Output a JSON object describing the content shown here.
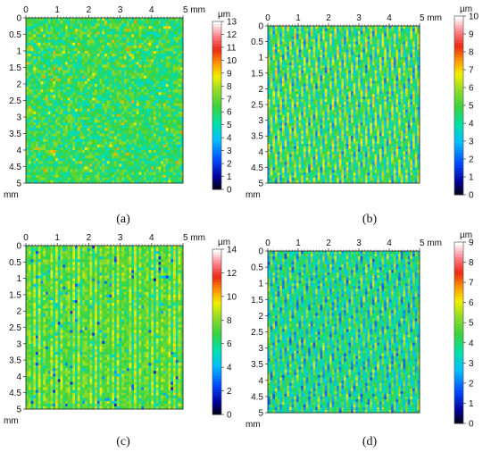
{
  "chart_data": [
    {
      "type": "heatmap",
      "caption": "(a)",
      "x_ticks": [
        "0",
        "1",
        "2",
        "3",
        "4",
        "5 mm"
      ],
      "y_ticks": [
        "0",
        "0.5",
        "1",
        "1.5",
        "2",
        "2.5",
        "3",
        "3.5",
        "4",
        "4.5",
        "5"
      ],
      "y_unit": "mm",
      "colorbar_unit": "µm",
      "colorbar_range": [
        0,
        13
      ],
      "colorbar_ticks": [
        "0",
        "1",
        "2",
        "3",
        "4",
        "5",
        "6",
        "7",
        "8",
        "9",
        "10",
        "11",
        "12",
        "13"
      ],
      "pattern": "random",
      "value_mean": 6.2,
      "value_spread": 1.4
    },
    {
      "type": "heatmap",
      "caption": "(b)",
      "x_ticks": [
        "0",
        "1",
        "2",
        "3",
        "4",
        "5 mm"
      ],
      "y_ticks": [
        "0",
        "0.5",
        "1",
        "1.5",
        "2",
        "2.5",
        "3",
        "3.5",
        "4",
        "4.5",
        "5"
      ],
      "y_unit": "mm",
      "colorbar_unit": "µm",
      "colorbar_range": [
        0,
        10
      ],
      "colorbar_ticks": [
        "0",
        "1",
        "2",
        "3",
        "4",
        "5",
        "6",
        "7",
        "8",
        "9",
        "10"
      ],
      "pattern": "slanted-ridges",
      "value_mean": 4.8,
      "value_spread": 1.6
    },
    {
      "type": "heatmap",
      "caption": "(c)",
      "x_ticks": [
        "0",
        "1",
        "2",
        "3",
        "4",
        "5 mm"
      ],
      "y_ticks": [
        "0",
        "0.5",
        "1",
        "1.5",
        "2",
        "2.5",
        "3",
        "3.5",
        "4",
        "4.5",
        "5"
      ],
      "y_unit": "mm",
      "colorbar_unit": "µm",
      "colorbar_range": [
        0,
        14
      ],
      "colorbar_ticks": [
        "0",
        "2",
        "4",
        "6",
        "8",
        "10",
        "12",
        "14"
      ],
      "pattern": "vertical-ridges",
      "value_mean": 7.5,
      "value_spread": 1.6
    },
    {
      "type": "heatmap",
      "caption": "(d)",
      "x_ticks": [
        "0",
        "1",
        "2",
        "3",
        "4",
        "5 mm"
      ],
      "y_ticks": [
        "0",
        "0.5",
        "1",
        "1.5",
        "2",
        "2.5",
        "3",
        "3.5",
        "4",
        "4.5",
        "5"
      ],
      "y_unit": "mm",
      "colorbar_unit": "µm",
      "colorbar_range": [
        0,
        9
      ],
      "colorbar_ticks": [
        "0",
        "1",
        "2",
        "3",
        "4",
        "5",
        "6",
        "7",
        "8",
        "9"
      ],
      "pattern": "slanted-ridges",
      "value_mean": 3.9,
      "value_spread": 1.3
    }
  ]
}
